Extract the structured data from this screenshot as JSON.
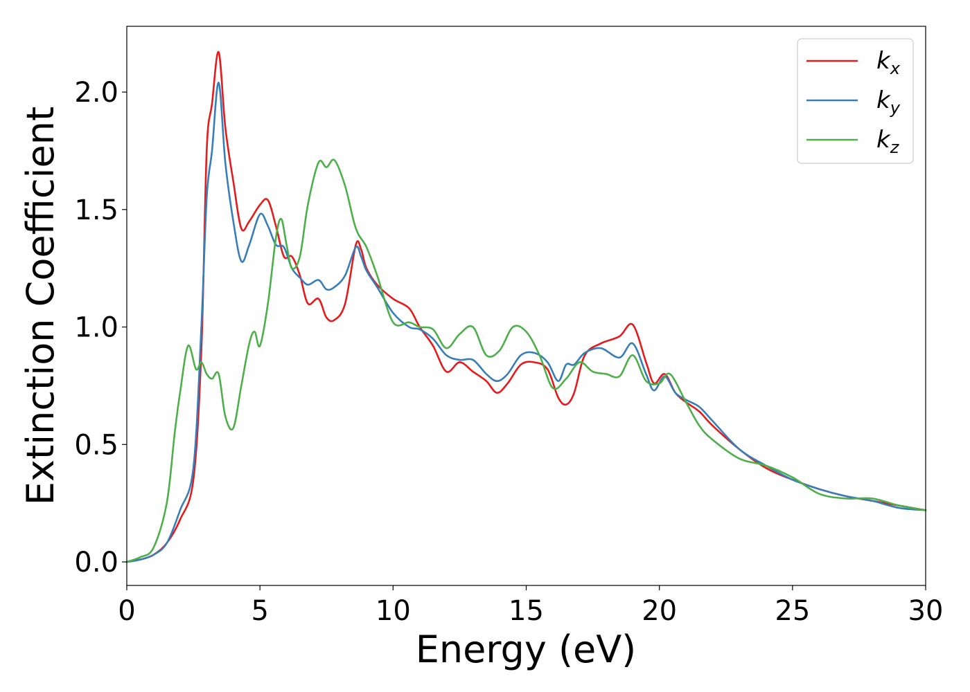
{
  "chart_data": {
    "type": "line",
    "xlabel": "Energy (eV)",
    "ylabel": "Extinction Coefficient",
    "xlim": [
      0,
      30
    ],
    "ylim": [
      -0.1,
      2.28
    ],
    "xticks": [
      "0",
      "5",
      "10",
      "15",
      "20",
      "25",
      "30"
    ],
    "yticks": [
      "0.0",
      "0.5",
      "1.0",
      "1.5",
      "2.0"
    ],
    "legend_position": "top-right",
    "grid": false,
    "series": [
      {
        "name": "k_x",
        "label_base": "k",
        "label_sub": "x",
        "color": "#e41a1c",
        "x": [
          0,
          0.5,
          1.0,
          1.5,
          2.0,
          2.5,
          2.8,
          3.0,
          3.2,
          3.45,
          3.7,
          4.0,
          4.3,
          4.6,
          5.0,
          5.3,
          5.6,
          5.9,
          6.2,
          6.5,
          6.8,
          7.2,
          7.5,
          7.8,
          8.2,
          8.6,
          8.8,
          9.0,
          9.4,
          10.0,
          10.6,
          11.0,
          11.5,
          12.0,
          12.5,
          13.0,
          13.5,
          13.9,
          14.3,
          14.8,
          15.3,
          15.8,
          16.2,
          16.5,
          16.8,
          17.2,
          17.8,
          18.5,
          19.0,
          19.5,
          19.8,
          20.2,
          20.6,
          21.0,
          21.5,
          22.0,
          23.0,
          24.0,
          25.0,
          26.0,
          27.0,
          28.0,
          29.0,
          30.0
        ],
        "values": [
          0,
          0.01,
          0.03,
          0.08,
          0.18,
          0.35,
          0.9,
          1.75,
          1.95,
          2.17,
          1.85,
          1.62,
          1.42,
          1.45,
          1.52,
          1.54,
          1.43,
          1.3,
          1.3,
          1.22,
          1.1,
          1.12,
          1.04,
          1.03,
          1.1,
          1.35,
          1.33,
          1.25,
          1.18,
          1.12,
          1.08,
          1.0,
          0.92,
          0.81,
          0.85,
          0.81,
          0.77,
          0.72,
          0.76,
          0.84,
          0.85,
          0.82,
          0.7,
          0.67,
          0.72,
          0.88,
          0.93,
          0.96,
          1.01,
          0.85,
          0.76,
          0.8,
          0.72,
          0.68,
          0.64,
          0.58,
          0.48,
          0.4,
          0.35,
          0.31,
          0.28,
          0.26,
          0.24,
          0.22
        ]
      },
      {
        "name": "k_y",
        "label_base": "k",
        "label_sub": "y",
        "color": "#377eb8",
        "x": [
          0,
          0.5,
          1.0,
          1.5,
          2.0,
          2.5,
          2.8,
          3.0,
          3.2,
          3.45,
          3.7,
          4.0,
          4.3,
          4.6,
          5.0,
          5.3,
          5.6,
          5.9,
          6.2,
          6.5,
          6.8,
          7.2,
          7.5,
          7.8,
          8.2,
          8.6,
          8.8,
          9.0,
          9.4,
          10.0,
          10.6,
          11.0,
          11.5,
          12.0,
          12.5,
          13.0,
          13.5,
          13.9,
          14.3,
          14.8,
          15.3,
          15.8,
          16.2,
          16.5,
          16.8,
          17.2,
          17.8,
          18.5,
          19.0,
          19.5,
          19.8,
          20.2,
          20.6,
          21.0,
          21.5,
          22.0,
          23.0,
          24.0,
          25.0,
          26.0,
          27.0,
          28.0,
          29.0,
          30.0
        ],
        "values": [
          0,
          0.01,
          0.03,
          0.08,
          0.22,
          0.4,
          1.0,
          1.55,
          1.75,
          2.04,
          1.7,
          1.45,
          1.28,
          1.35,
          1.48,
          1.43,
          1.35,
          1.34,
          1.25,
          1.21,
          1.18,
          1.2,
          1.16,
          1.17,
          1.22,
          1.34,
          1.3,
          1.24,
          1.17,
          1.06,
          1.0,
          0.99,
          0.95,
          0.88,
          0.86,
          0.86,
          0.8,
          0.77,
          0.8,
          0.88,
          0.89,
          0.85,
          0.77,
          0.84,
          0.84,
          0.89,
          0.91,
          0.87,
          0.93,
          0.8,
          0.73,
          0.79,
          0.72,
          0.69,
          0.66,
          0.6,
          0.48,
          0.41,
          0.35,
          0.31,
          0.28,
          0.26,
          0.23,
          0.22
        ]
      },
      {
        "name": "k_z",
        "label_base": "k",
        "label_sub": "z",
        "color": "#4daf4a",
        "x": [
          0,
          0.5,
          1.0,
          1.5,
          1.8,
          2.0,
          2.3,
          2.6,
          2.8,
          3.0,
          3.2,
          3.45,
          3.7,
          4.0,
          4.3,
          4.6,
          4.8,
          5.0,
          5.3,
          5.6,
          5.8,
          6.0,
          6.2,
          6.5,
          6.8,
          7.2,
          7.5,
          7.8,
          8.2,
          8.6,
          9.0,
          9.4,
          10.0,
          10.6,
          11.0,
          11.5,
          12.0,
          12.5,
          13.0,
          13.5,
          14.0,
          14.5,
          15.0,
          15.5,
          16.0,
          16.5,
          17.0,
          17.5,
          18.0,
          18.5,
          19.0,
          19.5,
          20.0,
          20.4,
          21.0,
          21.5,
          22.0,
          23.0,
          24.0,
          25.0,
          26.0,
          27.0,
          28.0,
          29.0,
          30.0
        ],
        "values": [
          0,
          0.02,
          0.06,
          0.25,
          0.55,
          0.72,
          0.92,
          0.82,
          0.85,
          0.8,
          0.78,
          0.8,
          0.62,
          0.57,
          0.75,
          0.93,
          0.98,
          0.92,
          1.1,
          1.38,
          1.46,
          1.35,
          1.25,
          1.3,
          1.52,
          1.7,
          1.68,
          1.71,
          1.6,
          1.42,
          1.34,
          1.22,
          1.02,
          1.02,
          1.0,
          0.99,
          0.91,
          0.97,
          1.0,
          0.88,
          0.9,
          1.0,
          0.98,
          0.88,
          0.74,
          0.78,
          0.85,
          0.81,
          0.8,
          0.79,
          0.88,
          0.77,
          0.76,
          0.8,
          0.68,
          0.58,
          0.52,
          0.44,
          0.41,
          0.36,
          0.29,
          0.27,
          0.27,
          0.24,
          0.22
        ]
      }
    ]
  }
}
